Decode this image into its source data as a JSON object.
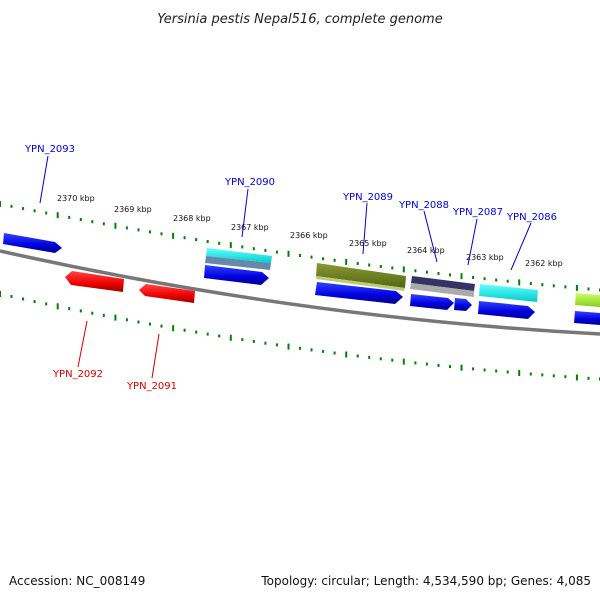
{
  "title": "Yersinia pestis Nepal516, complete genome",
  "footer": {
    "accession": "Accession: NC_008149",
    "summary": "Topology: circular; Length: 4,534,590 bp; Genes: 4,085"
  },
  "colors": {
    "forward_label": "#0000cc",
    "reverse_label": "#cc0000",
    "backbone": "#777777",
    "ticks": "#008000"
  },
  "kbp_labels": [
    "2370 kbp",
    "2369 kbp",
    "2368 kbp",
    "2367 kbp",
    "2366 kbp",
    "2365 kbp",
    "2364 kbp",
    "2363 kbp",
    "2362 kbp"
  ],
  "genes": [
    {
      "label": "YPN_2093",
      "strand": "forward"
    },
    {
      "label": "YPN_2092",
      "strand": "reverse"
    },
    {
      "label": "YPN_2091",
      "strand": "reverse"
    },
    {
      "label": "YPN_2090",
      "strand": "forward"
    },
    {
      "label": "YPN_2089",
      "strand": "forward"
    },
    {
      "label": "YPN_2088",
      "strand": "forward"
    },
    {
      "label": "YPN_2087",
      "strand": "forward"
    },
    {
      "label": "YPN_2086",
      "strand": "forward"
    }
  ]
}
